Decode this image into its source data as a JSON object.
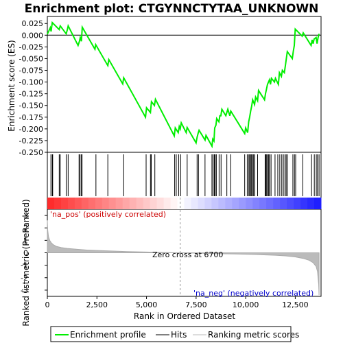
{
  "chart_data": {
    "type": "line",
    "title": "Enrichment plot: CTGYNNCTYTAA_UNKNOWN",
    "top_panel": {
      "ylabel": "Enrichment score (ES)",
      "ylim": [
        -0.25,
        0.04
      ],
      "yticks": [
        0.025,
        0.0,
        -0.025,
        -0.05,
        -0.075,
        -0.1,
        -0.125,
        -0.15,
        -0.175,
        -0.2,
        -0.225,
        -0.25
      ],
      "ytick_labels": [
        "0.025",
        "0.000",
        "-0.025",
        "-0.050",
        "-0.075",
        "-0.100",
        "-0.125",
        "-0.150",
        "-0.175",
        "-0.200",
        "-0.225",
        "-0.250"
      ],
      "series": [
        {
          "name": "Enrichment profile",
          "color": "#00ee00",
          "x": [
            0,
            150,
            190,
            250,
            600,
            650,
            950,
            1010,
            1050,
            1550,
            1620,
            1660,
            1720,
            1760,
            2400,
            2440,
            3050,
            3100,
            3800,
            3850,
            4950,
            5000,
            5200,
            5250,
            5400,
            5450,
            6400,
            6450,
            6600,
            6650,
            6700,
            6750,
            7000,
            7050,
            7500,
            7550,
            7600,
            7650,
            7950,
            8000,
            8300,
            8340,
            8400,
            8440,
            8500,
            8540,
            8650,
            8700,
            8750,
            8800,
            9000,
            9100,
            9200,
            9250,
            9950,
            10000,
            10100,
            10150,
            10200,
            10250,
            10300,
            10350,
            10450,
            10500,
            10600,
            10650,
            10950,
            11000,
            11050,
            11100,
            11150,
            11200,
            11250,
            11300,
            11450,
            11500,
            11650,
            11700,
            11800,
            11850,
            11950,
            12000,
            12050,
            12100,
            12350,
            12400,
            12450,
            12500,
            12850,
            12900,
            13300,
            13350,
            13400,
            13450,
            13550,
            13600,
            13650,
            13700
          ],
          "y": [
            0.002,
            0.016,
            0.008,
            0.027,
            0.012,
            0.02,
            0.003,
            0.012,
            0.02,
            -0.022,
            -0.013,
            -0.005,
            -0.013,
            0.017,
            -0.03,
            -0.02,
            -0.065,
            -0.052,
            -0.104,
            -0.091,
            -0.175,
            -0.155,
            -0.165,
            -0.142,
            -0.15,
            -0.137,
            -0.215,
            -0.198,
            -0.208,
            -0.195,
            -0.2,
            -0.187,
            -0.208,
            -0.197,
            -0.23,
            -0.218,
            -0.21,
            -0.203,
            -0.224,
            -0.214,
            -0.237,
            -0.222,
            -0.226,
            -0.198,
            -0.192,
            -0.178,
            -0.185,
            -0.172,
            -0.172,
            -0.158,
            -0.172,
            -0.158,
            -0.172,
            -0.162,
            -0.21,
            -0.198,
            -0.208,
            -0.185,
            -0.175,
            -0.162,
            -0.152,
            -0.138,
            -0.148,
            -0.132,
            -0.14,
            -0.118,
            -0.138,
            -0.125,
            -0.115,
            -0.105,
            -0.1,
            -0.095,
            -0.105,
            -0.092,
            -0.1,
            -0.092,
            -0.105,
            -0.08,
            -0.088,
            -0.075,
            -0.08,
            -0.065,
            -0.05,
            -0.035,
            -0.05,
            -0.035,
            -0.022,
            0.013,
            -0.002,
            0.005,
            -0.022,
            -0.01,
            -0.018,
            -0.008,
            -0.005,
            -0.018,
            -0.005,
            0.003
          ]
        }
      ]
    },
    "hits_panel": {
      "series_name": "Hits",
      "hit_positions": [
        180,
        250,
        270,
        600,
        650,
        950,
        1050,
        1600,
        1650,
        1720,
        1750,
        2450,
        3050,
        3850,
        4980,
        5200,
        5240,
        5420,
        6420,
        6500,
        6620,
        6720,
        7050,
        7550,
        7620,
        7950,
        8300,
        8360,
        8420,
        8460,
        8520,
        8660,
        8760,
        9050,
        9250,
        9950,
        10080,
        10160,
        10200,
        10260,
        10300,
        10340,
        10400,
        10460,
        10600,
        10980,
        11020,
        11060,
        11120,
        11160,
        11200,
        11280,
        11480,
        11620,
        11720,
        11820,
        11900,
        11980,
        12040,
        12100,
        12380,
        12460,
        12520,
        12880,
        13320,
        13460,
        13560,
        13620,
        13700
      ]
    },
    "gradient_bar": {
      "positive_label": "'na_pos' (positively correlated)",
      "negative_label": "'na_neg' (negatively correlated)",
      "positive_color": "#ff0000",
      "negative_color": "#0000ff"
    },
    "bottom_panel": {
      "series_name": "Ranking metric scores",
      "ylabel": "Ranked list metric (PreRanked)",
      "ylim": [
        -3.5,
        3.5
      ],
      "yticks": [
        3,
        2,
        1,
        0,
        -1,
        -2,
        -3
      ],
      "ytick_labels": [
        "3",
        "2",
        "1",
        "0",
        "-1",
        "-2",
        "-3"
      ],
      "x": [
        0,
        20,
        60,
        120,
        200,
        300,
        450,
        700,
        1000,
        1500,
        2000,
        3000,
        4000,
        5000,
        6000,
        6700,
        7500,
        8500,
        9500,
        10500,
        11500,
        12000,
        12500,
        12900,
        13200,
        13400,
        13550,
        13620,
        13680,
        13700
      ],
      "values": [
        2.6,
        1.8,
        1.3,
        1.0,
        0.8,
        0.65,
        0.52,
        0.42,
        0.35,
        0.28,
        0.22,
        0.16,
        0.1,
        0.06,
        0.02,
        0.0,
        -0.03,
        -0.07,
        -0.1,
        -0.14,
        -0.2,
        -0.25,
        -0.33,
        -0.45,
        -0.6,
        -0.8,
        -1.1,
        -1.5,
        -2.5,
        -3.4
      ],
      "zero_cross_label": "Zero cross at 6700",
      "zero_cross": 6700
    },
    "xaxis": {
      "xlabel": "Rank in Ordered Dataset",
      "xlim": [
        0,
        13800
      ],
      "xticks": [
        0,
        2500,
        5000,
        7500,
        10000,
        12500
      ],
      "xtick_labels": [
        "0",
        "2,500",
        "5,000",
        "7,500",
        "10,000",
        "12,500"
      ]
    },
    "legend": {
      "position": "bottom",
      "items": [
        "Enrichment profile",
        "Hits",
        "Ranking metric scores"
      ],
      "colors": [
        "#00ee00",
        "#000000",
        "#bbbbbb"
      ]
    },
    "grid": false
  }
}
